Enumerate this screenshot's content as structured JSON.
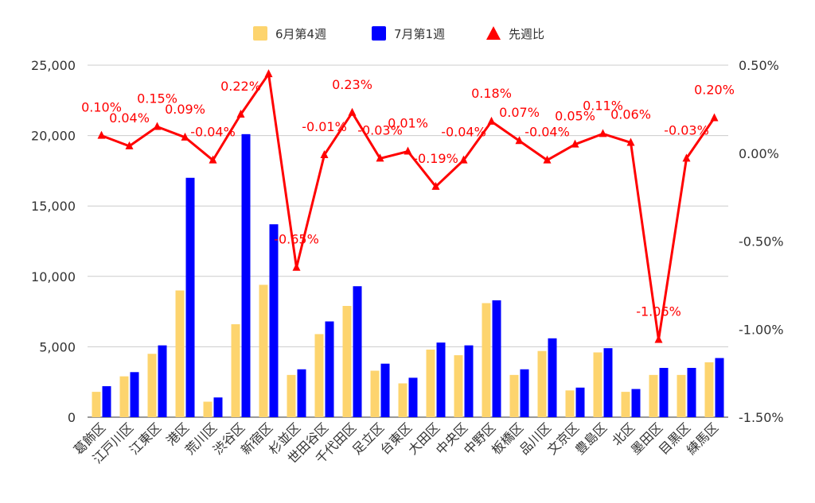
{
  "chart_data": {
    "type": "bar+line",
    "title": "",
    "categories": [
      "葛飾区",
      "江戸川区",
      "江東区",
      "港区",
      "荒川区",
      "渋谷区",
      "新宿区",
      "杉並区",
      "世田谷区",
      "千代田区",
      "足立区",
      "台東区",
      "大田区",
      "中央区",
      "中野区",
      "板橋区",
      "品川区",
      "文京区",
      "豊島区",
      "北区",
      "墨田区",
      "目黒区",
      "練馬区"
    ],
    "series": [
      {
        "name": "6月第4週",
        "type": "bar",
        "axis": "left",
        "color": "#fdd46e",
        "values": [
          1800,
          2900,
          4500,
          9000,
          1100,
          6600,
          9400,
          3000,
          5900,
          7900,
          3300,
          2400,
          4800,
          4400,
          8100,
          3000,
          4700,
          1900,
          4600,
          1800,
          3000,
          3000,
          3900
        ]
      },
      {
        "name": "7月第1週",
        "type": "bar",
        "axis": "right-none",
        "color": "#0000ff",
        "values": [
          2200,
          3200,
          5100,
          17000,
          1400,
          20100,
          13700,
          3400,
          6800,
          9300,
          3800,
          2800,
          5300,
          5100,
          8300,
          3400,
          5600,
          2100,
          4900,
          2000,
          3500,
          3500,
          4200
        ]
      },
      {
        "name": "先週比",
        "type": "line",
        "axis": "right",
        "color": "#ff0000",
        "values": [
          0.1,
          0.04,
          0.15,
          0.09,
          -0.04,
          0.22,
          0.45,
          -0.65,
          -0.01,
          0.23,
          -0.03,
          0.01,
          -0.19,
          -0.04,
          0.18,
          0.07,
          -0.04,
          0.05,
          0.11,
          0.06,
          -1.06,
          -0.03,
          0.2
        ],
        "labels": [
          "0.10%",
          "0.04%",
          "0.15%",
          "0.09%",
          "-0.04%",
          "0.22%",
          "",
          "-0.65%",
          "-0.01%",
          "0.23%",
          "-0.03%",
          "0.01%",
          "-0.19%",
          "-0.04%",
          "0.18%",
          "0.07%",
          "-0.04%",
          "0.05%",
          "0.11%",
          "0.06%",
          "-1.06%",
          "-0.03%",
          "0.20%"
        ]
      }
    ],
    "y_left": {
      "min": 0,
      "max": 25000,
      "ticks": [
        "0",
        "5,000",
        "10,000",
        "15,000",
        "20,000",
        "25,000"
      ],
      "tick_values": [
        0,
        5000,
        10000,
        15000,
        20000,
        25000
      ]
    },
    "y_right": {
      "min": -1.5,
      "max": 0.5,
      "ticks": [
        "-1.50%",
        "-1.00%",
        "-0.50%",
        "0.00%",
        "0.50%"
      ],
      "tick_values": [
        -1.5,
        -1.0,
        -0.5,
        0.0,
        0.5
      ]
    },
    "legend_position": "top",
    "grid": true
  }
}
